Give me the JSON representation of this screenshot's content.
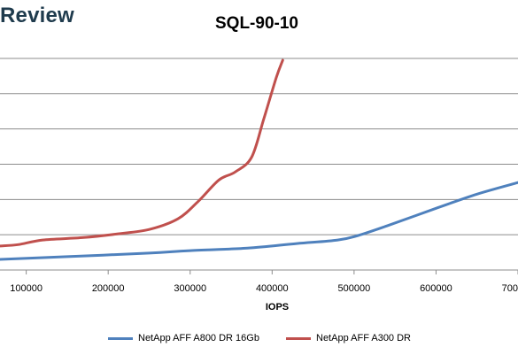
{
  "header": {
    "brand": "Review",
    "chart_title": "SQL-90-10"
  },
  "chart_data": {
    "type": "line",
    "title": "SQL-90-10",
    "xlabel": "IOPS",
    "ylabel": "",
    "x_ticks": [
      "100000",
      "200000",
      "300000",
      "400000",
      "500000",
      "600000",
      "700000"
    ],
    "x_tick_values": [
      100000,
      200000,
      300000,
      400000,
      500000,
      600000,
      700000
    ],
    "xlim": [
      68000,
      700000
    ],
    "ylim": [
      0,
      6.2
    ],
    "y_gridlines": [
      1,
      2,
      3,
      4,
      5,
      6
    ],
    "grid": true,
    "legend_position": "bottom",
    "series": [
      {
        "name": "NetApp AFF A800 DR 16Gb",
        "color": "#4f81bd",
        "points": [
          [
            68000,
            0.3
          ],
          [
            150000,
            0.38
          ],
          [
            250000,
            0.48
          ],
          [
            300000,
            0.55
          ],
          [
            370000,
            0.62
          ],
          [
            430000,
            0.75
          ],
          [
            480000,
            0.85
          ],
          [
            505000,
            0.98
          ],
          [
            540000,
            1.25
          ],
          [
            600000,
            1.75
          ],
          [
            650000,
            2.15
          ],
          [
            700000,
            2.48
          ]
        ]
      },
      {
        "name": "NetApp AFF A300 DR",
        "color": "#c0504d",
        "points": [
          [
            68000,
            0.68
          ],
          [
            90000,
            0.72
          ],
          [
            120000,
            0.85
          ],
          [
            170000,
            0.92
          ],
          [
            210000,
            1.02
          ],
          [
            250000,
            1.15
          ],
          [
            285000,
            1.45
          ],
          [
            310000,
            1.95
          ],
          [
            335000,
            2.55
          ],
          [
            355000,
            2.78
          ],
          [
            375000,
            3.2
          ],
          [
            390000,
            4.3
          ],
          [
            405000,
            5.45
          ],
          [
            413000,
            5.95
          ]
        ]
      }
    ]
  }
}
